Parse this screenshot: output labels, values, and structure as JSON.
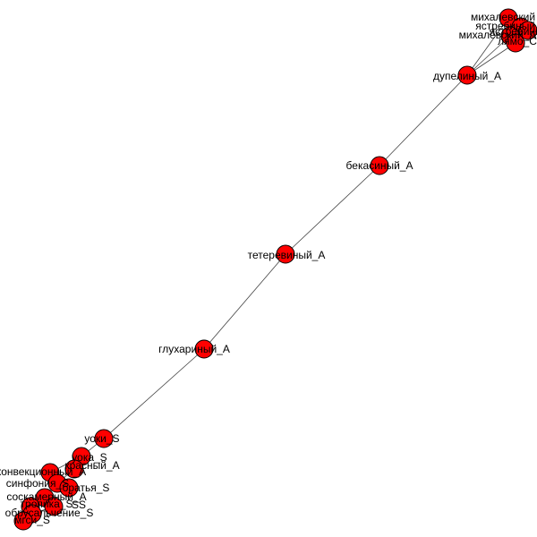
{
  "graph": {
    "node_color": "#ff0000",
    "edge_color": "#444444",
    "nodes": [
      {
        "id": "mikh1",
        "label": "михалевский"
      },
      {
        "id": "mikh2",
        "label": "ястребиный_A"
      },
      {
        "id": "mikh3",
        "label": "михалевский_A"
      },
      {
        "id": "mikh4",
        "label": "ястребиный"
      },
      {
        "id": "mikh5",
        "label": "лямо_С"
      },
      {
        "id": "dupel",
        "label": "дупелиный_A"
      },
      {
        "id": "bekas",
        "label": "бекасиный_A"
      },
      {
        "id": "teter",
        "label": "тетеревиный_A"
      },
      {
        "id": "gluh",
        "label": "глухариный_A"
      },
      {
        "id": "uki",
        "label": "уоки_S"
      },
      {
        "id": "uka",
        "label": "уока_S"
      },
      {
        "id": "krasny",
        "label": "красный_A"
      },
      {
        "id": "konvek",
        "label": "конвекционный_A"
      },
      {
        "id": "sinfo",
        "label": "синфония_S"
      },
      {
        "id": "brat",
        "label": "братья_S"
      },
      {
        "id": "sosk",
        "label": "соскамерный_A"
      },
      {
        "id": "tropik",
        "label": "тропика_S"
      },
      {
        "id": "obrusk",
        "label": "обрусальчение_S"
      },
      {
        "id": "mgsi",
        "label": "мгси_S"
      },
      {
        "id": "ss1",
        "label": "SS"
      }
    ],
    "edges": [
      [
        "mikh3",
        "dupel"
      ],
      [
        "mikh5",
        "dupel"
      ],
      [
        "mikh1",
        "dupel"
      ],
      [
        "dupel",
        "bekas"
      ],
      [
        "bekas",
        "teter"
      ],
      [
        "teter",
        "gluh"
      ],
      [
        "gluh",
        "uki"
      ],
      [
        "uki",
        "uka"
      ],
      [
        "uka",
        "krasny"
      ],
      [
        "uka",
        "konvek"
      ],
      [
        "krasny",
        "sinfo"
      ],
      [
        "konvek",
        "sinfo"
      ],
      [
        "sinfo",
        "brat"
      ],
      [
        "sinfo",
        "sosk"
      ],
      [
        "sosk",
        "tropik"
      ],
      [
        "sosk",
        "obrusk"
      ],
      [
        "tropik",
        "mgsi"
      ],
      [
        "obrusk",
        "ss1"
      ],
      [
        "mikh1",
        "mikh2"
      ],
      [
        "mikh2",
        "mikh3"
      ],
      [
        "mikh3",
        "mikh4"
      ],
      [
        "mikh4",
        "mikh5"
      ]
    ]
  }
}
